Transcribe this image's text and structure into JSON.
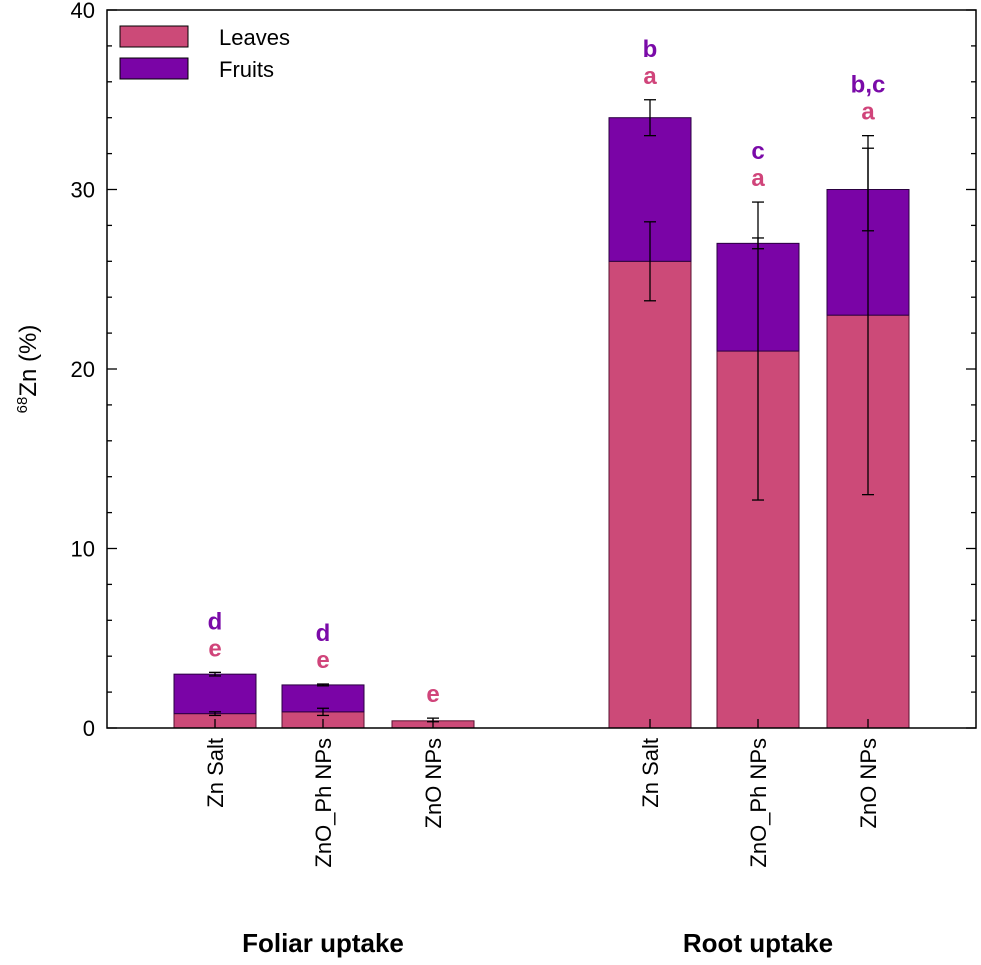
{
  "chart_data": {
    "type": "bar",
    "stacked": true,
    "ylabel": {
      "superscript": "68",
      "text": "Zn (%)"
    },
    "ylim": [
      0,
      40
    ],
    "yticks": [
      0,
      10,
      20,
      30,
      40
    ],
    "grid": false,
    "legend_position": "top-left",
    "colors": {
      "Leaves": "#cc4a78",
      "Fruits": "#7a04a6"
    },
    "label_colors": {
      "fruits": "#7a0aa8",
      "leaves": "#d0447a"
    },
    "groups": [
      {
        "name": "Foliar uptake",
        "categories": [
          "Zn Salt",
          "ZnO_Ph NPs",
          "ZnO NPs"
        ]
      },
      {
        "name": "Root uptake",
        "categories": [
          "Zn Salt",
          "ZnO_Ph NPs",
          "ZnO NPs"
        ]
      }
    ],
    "series": [
      {
        "name": "Leaves",
        "values": [
          0.8,
          0.9,
          0.4,
          26.0,
          21.0,
          23.0
        ],
        "error": [
          [
            0.7,
            0.9
          ],
          [
            0.7,
            1.1
          ],
          [
            0.35,
            0.55
          ],
          [
            23.8,
            28.2
          ],
          [
            12.7,
            29.3
          ],
          [
            13.0,
            33.0
          ]
        ],
        "sig": [
          "e",
          "e",
          "e",
          "a",
          "a",
          "a"
        ]
      },
      {
        "name": "Fruits",
        "values": [
          2.2,
          1.5,
          0,
          8.0,
          6.0,
          7.0
        ],
        "error": [
          [
            2.9,
            3.1
          ],
          [
            2.35,
            2.45
          ],
          null,
          [
            33.0,
            35.0
          ],
          [
            26.7,
            27.3
          ],
          [
            27.7,
            32.3
          ]
        ],
        "sig": [
          "d",
          "d",
          "",
          "b",
          "c",
          "b,c"
        ]
      }
    ]
  }
}
